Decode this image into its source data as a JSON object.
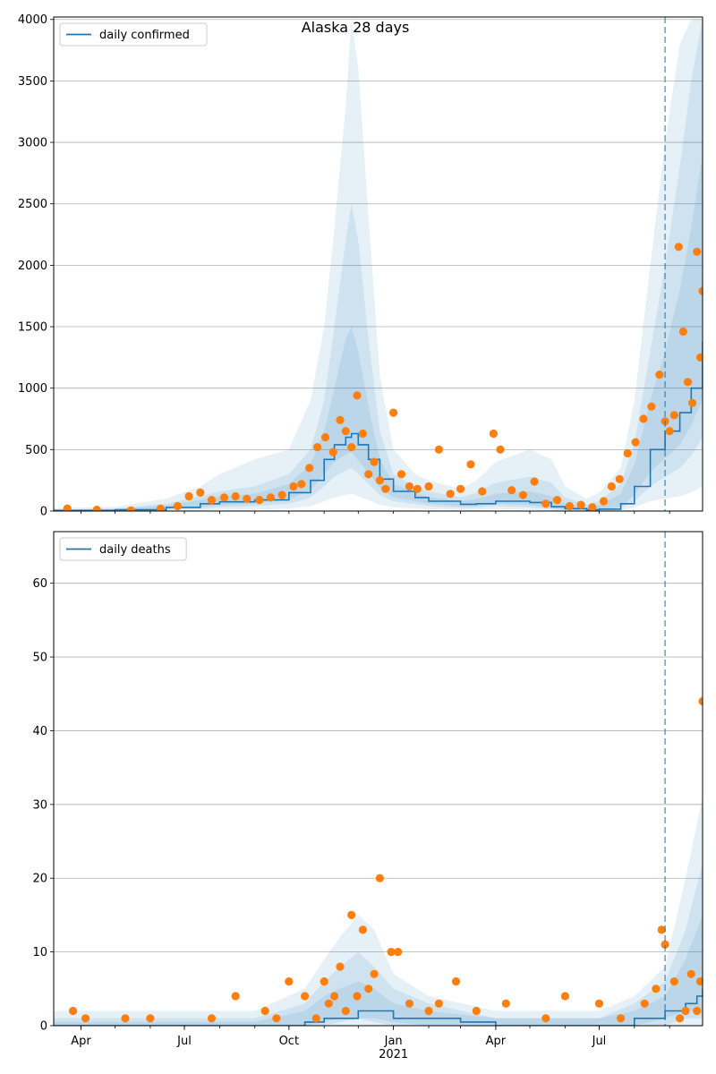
{
  "figure_title": "Alaska 28 days",
  "colors": {
    "line": "#1f77b4",
    "points": "#ff7f0e",
    "band": "#1f77b4",
    "grid": "#b0b0b0"
  },
  "chart_data": [
    {
      "type": "line",
      "title": "Alaska 28 days",
      "legend": [
        "daily confirmed"
      ],
      "legend_position": "top-left",
      "grid": true,
      "ylim": [
        0,
        4020
      ],
      "yticks": [
        0,
        500,
        1000,
        1500,
        2000,
        2500,
        3000,
        3500,
        4000
      ],
      "xlim": [
        "2020-03-08",
        "2021-09-30"
      ],
      "forecast_start": "2021-08-28",
      "series": [
        {
          "name": "daily confirmed",
          "x": [
            "2020-03-08",
            "2020-05-01",
            "2020-06-15",
            "2020-07-15",
            "2020-08-01",
            "2020-09-01",
            "2020-10-01",
            "2020-10-20",
            "2020-11-01",
            "2020-11-10",
            "2020-11-20",
            "2020-11-25",
            "2020-12-01",
            "2020-12-10",
            "2020-12-20",
            "2021-01-01",
            "2021-01-20",
            "2021-02-01",
            "2021-03-01",
            "2021-03-15",
            "2021-04-01",
            "2021-05-01",
            "2021-05-20",
            "2021-06-01",
            "2021-06-20",
            "2021-07-01",
            "2021-07-20",
            "2021-08-01",
            "2021-08-15",
            "2021-08-28",
            "2021-09-10",
            "2021-09-20",
            "2021-09-30"
          ],
          "values": [
            5,
            10,
            30,
            60,
            75,
            90,
            150,
            250,
            420,
            540,
            600,
            630,
            540,
            420,
            260,
            160,
            110,
            80,
            55,
            60,
            80,
            70,
            35,
            20,
            10,
            15,
            60,
            200,
            500,
            650,
            800,
            1000,
            1380
          ]
        },
        {
          "name": "",
          "kind": "observed points",
          "x": [
            "2020-03-20",
            "2020-04-15",
            "2020-05-15",
            "2020-06-10",
            "2020-06-25",
            "2020-07-05",
            "2020-07-15",
            "2020-07-25",
            "2020-08-05",
            "2020-08-15",
            "2020-08-25",
            "2020-09-05",
            "2020-09-15",
            "2020-09-25",
            "2020-10-05",
            "2020-10-12",
            "2020-10-19",
            "2020-10-26",
            "2020-11-02",
            "2020-11-09",
            "2020-11-15",
            "2020-11-20",
            "2020-11-25",
            "2020-11-30",
            "2020-12-05",
            "2020-12-10",
            "2020-12-15",
            "2020-12-20",
            "2020-12-25",
            "2021-01-01",
            "2021-01-08",
            "2021-01-15",
            "2021-01-22",
            "2021-02-01",
            "2021-02-10",
            "2021-02-20",
            "2021-03-01",
            "2021-03-10",
            "2021-03-20",
            "2021-03-30",
            "2021-04-05",
            "2021-04-15",
            "2021-04-25",
            "2021-05-05",
            "2021-05-15",
            "2021-05-25",
            "2021-06-05",
            "2021-06-15",
            "2021-06-25",
            "2021-07-05",
            "2021-07-12",
            "2021-07-19",
            "2021-07-26",
            "2021-08-02",
            "2021-08-09",
            "2021-08-16",
            "2021-08-23",
            "2021-08-28",
            "2021-09-01",
            "2021-09-05",
            "2021-09-09",
            "2021-09-13",
            "2021-09-17",
            "2021-09-21",
            "2021-09-25",
            "2021-09-28",
            "2021-09-30"
          ],
          "values": [
            20,
            10,
            5,
            20,
            40,
            120,
            150,
            90,
            110,
            120,
            100,
            90,
            110,
            130,
            200,
            220,
            350,
            520,
            600,
            480,
            740,
            650,
            520,
            940,
            630,
            300,
            400,
            250,
            180,
            800,
            300,
            200,
            180,
            200,
            500,
            140,
            180,
            380,
            160,
            630,
            500,
            170,
            130,
            240,
            60,
            90,
            40,
            50,
            30,
            80,
            200,
            260,
            470,
            560,
            750,
            850,
            1110,
            730,
            650,
            780,
            2150,
            1460,
            1050,
            880,
            2110,
            1250,
            1790
          ]
        }
      ],
      "bands": [
        {
          "x": [
            "2020-03-08",
            "2020-05-01",
            "2020-06-15",
            "2020-07-15",
            "2020-08-01",
            "2020-09-01",
            "2020-10-01",
            "2020-10-20",
            "2020-11-01",
            "2020-11-10",
            "2020-11-20",
            "2020-11-25",
            "2020-12-01",
            "2020-12-10",
            "2020-12-20",
            "2021-01-01",
            "2021-01-20",
            "2021-02-01",
            "2021-03-01",
            "2021-03-15",
            "2021-04-01",
            "2021-05-01",
            "2021-05-20",
            "2021-06-01",
            "2021-06-20",
            "2021-07-01",
            "2021-07-20",
            "2021-08-01",
            "2021-08-15",
            "2021-08-28",
            "2021-09-10",
            "2021-09-20",
            "2021-09-30"
          ],
          "lower": [
            0,
            0,
            0,
            5,
            10,
            10,
            20,
            40,
            80,
            110,
            130,
            140,
            120,
            90,
            50,
            30,
            20,
            15,
            10,
            10,
            15,
            10,
            5,
            0,
            0,
            0,
            5,
            30,
            80,
            100,
            120,
            150,
            200
          ],
          "upper": [
            25,
            35,
            100,
            200,
            300,
            420,
            500,
            900,
            1500,
            2300,
            3300,
            4000,
            3600,
            2400,
            1100,
            500,
            300,
            250,
            180,
            250,
            400,
            500,
            420,
            200,
            100,
            150,
            350,
            900,
            2000,
            3000,
            3800,
            4000,
            4000
          ]
        },
        {
          "x": [
            "2020-03-08",
            "2020-05-01",
            "2020-06-15",
            "2020-07-15",
            "2020-08-01",
            "2020-09-01",
            "2020-10-01",
            "2020-10-20",
            "2020-11-01",
            "2020-11-10",
            "2020-11-20",
            "2020-11-25",
            "2020-12-01",
            "2020-12-10",
            "2020-12-20",
            "2021-01-01",
            "2021-01-20",
            "2021-02-01",
            "2021-03-01",
            "2021-03-15",
            "2021-04-01",
            "2021-05-01",
            "2021-05-20",
            "2021-06-01",
            "2021-06-20",
            "2021-07-01",
            "2021-07-20",
            "2021-08-01",
            "2021-08-15",
            "2021-08-28",
            "2021-09-10",
            "2021-09-20",
            "2021-09-30"
          ],
          "lower": [
            2,
            4,
            10,
            20,
            30,
            40,
            60,
            110,
            200,
            280,
            330,
            350,
            300,
            220,
            130,
            80,
            55,
            40,
            25,
            28,
            40,
            30,
            15,
            5,
            2,
            4,
            20,
            80,
            200,
            280,
            350,
            450,
            600
          ],
          "upper": [
            12,
            20,
            60,
            120,
            160,
            200,
            300,
            500,
            900,
            1500,
            2200,
            2500,
            2200,
            1400,
            650,
            300,
            200,
            160,
            110,
            150,
            230,
            280,
            230,
            110,
            55,
            80,
            220,
            550,
            1300,
            2000,
            2800,
            3500,
            4000
          ]
        },
        {
          "x": [
            "2020-03-08",
            "2020-05-01",
            "2020-06-15",
            "2020-07-15",
            "2020-08-01",
            "2020-09-01",
            "2020-10-01",
            "2020-10-20",
            "2020-11-01",
            "2020-11-10",
            "2020-11-20",
            "2020-11-25",
            "2020-12-01",
            "2020-12-10",
            "2020-12-20",
            "2021-01-01",
            "2021-01-20",
            "2021-02-01",
            "2021-03-01",
            "2021-03-15",
            "2021-04-01",
            "2021-05-01",
            "2021-05-20",
            "2021-06-01",
            "2021-06-20",
            "2021-07-01",
            "2021-07-20",
            "2021-08-01",
            "2021-08-15",
            "2021-08-28",
            "2021-09-10",
            "2021-09-20",
            "2021-09-30"
          ],
          "lower": [
            3,
            6,
            18,
            35,
            45,
            60,
            95,
            170,
            300,
            400,
            460,
            480,
            410,
            310,
            190,
            115,
            80,
            60,
            40,
            42,
            60,
            50,
            25,
            10,
            5,
            8,
            35,
            130,
            320,
            430,
            540,
            700,
            900
          ],
          "upper": [
            8,
            14,
            45,
            90,
            120,
            140,
            220,
            380,
            650,
            1000,
            1400,
            1500,
            1300,
            850,
            420,
            220,
            150,
            115,
            80,
            100,
            140,
            160,
            120,
            60,
            30,
            45,
            140,
            380,
            900,
            1300,
            1800,
            2300,
            2900
          ]
        }
      ]
    },
    {
      "type": "line",
      "title": "",
      "legend": [
        "daily deaths"
      ],
      "legend_position": "top-left",
      "grid": true,
      "ylim": [
        0,
        67
      ],
      "yticks": [
        0,
        10,
        20,
        30,
        40,
        50,
        60
      ],
      "xlim": [
        "2020-03-08",
        "2021-09-30"
      ],
      "xticks": [
        "Apr",
        "Jul",
        "Oct",
        "Jan",
        "Apr",
        "Jul"
      ],
      "xtick_dates": [
        "2020-04-01",
        "2020-07-01",
        "2020-10-01",
        "2021-01-01",
        "2021-04-01",
        "2021-07-01"
      ],
      "x_secondary_label": "2021",
      "forecast_start": "2021-08-28",
      "series": [
        {
          "name": "daily deaths",
          "x": [
            "2020-03-08",
            "2020-06-01",
            "2020-09-01",
            "2020-10-15",
            "2020-11-01",
            "2020-11-15",
            "2020-12-01",
            "2020-12-15",
            "2021-01-01",
            "2021-02-01",
            "2021-03-01",
            "2021-04-01",
            "2021-06-01",
            "2021-08-01",
            "2021-08-15",
            "2021-08-28",
            "2021-09-15",
            "2021-09-25",
            "2021-09-30"
          ],
          "values": [
            0,
            0,
            0,
            0.5,
            1,
            1,
            2,
            2,
            1,
            1,
            0.5,
            0,
            0,
            1,
            1,
            2,
            3,
            4,
            5
          ]
        },
        {
          "name": "",
          "kind": "observed points",
          "x": [
            "2020-03-25",
            "2020-04-05",
            "2020-05-10",
            "2020-06-01",
            "2020-07-25",
            "2020-08-15",
            "2020-09-10",
            "2020-09-20",
            "2020-10-01",
            "2020-10-15",
            "2020-10-25",
            "2020-11-01",
            "2020-11-05",
            "2020-11-10",
            "2020-11-15",
            "2020-11-20",
            "2020-11-25",
            "2020-11-30",
            "2020-12-05",
            "2020-12-10",
            "2020-12-15",
            "2020-12-20",
            "2020-12-30",
            "2021-01-05",
            "2021-01-15",
            "2021-02-01",
            "2021-02-10",
            "2021-02-25",
            "2021-03-15",
            "2021-04-10",
            "2021-05-15",
            "2021-06-01",
            "2021-07-01",
            "2021-07-20",
            "2021-08-10",
            "2021-08-20",
            "2021-08-25",
            "2021-08-28",
            "2021-09-05",
            "2021-09-10",
            "2021-09-15",
            "2021-09-20",
            "2021-09-25",
            "2021-09-28",
            "2021-09-30"
          ],
          "values": [
            2,
            1,
            1,
            1,
            1,
            4,
            2,
            1,
            6,
            4,
            1,
            6,
            3,
            4,
            8,
            2,
            15,
            4,
            13,
            5,
            7,
            20,
            10,
            10,
            3,
            2,
            3,
            6,
            2,
            3,
            1,
            4,
            3,
            1,
            3,
            5,
            13,
            11,
            6,
            1,
            2,
            7,
            2,
            6,
            44
          ]
        }
      ],
      "bands": [
        {
          "x": [
            "2020-03-08",
            "2020-09-01",
            "2020-10-15",
            "2020-11-01",
            "2020-11-15",
            "2020-12-01",
            "2020-12-15",
            "2021-01-01",
            "2021-02-01",
            "2021-04-01",
            "2021-07-01",
            "2021-08-01",
            "2021-08-28",
            "2021-09-15",
            "2021-09-30"
          ],
          "lower": [
            0,
            0,
            0,
            0,
            0,
            0,
            0,
            0,
            0,
            0,
            0,
            0,
            0,
            0,
            0
          ],
          "upper": [
            2,
            2,
            5,
            9,
            12,
            15,
            13,
            7,
            4,
            2,
            2,
            4,
            8,
            20,
            31
          ]
        },
        {
          "x": [
            "2020-03-08",
            "2020-09-01",
            "2020-10-15",
            "2020-11-01",
            "2020-11-15",
            "2020-12-01",
            "2020-12-15",
            "2021-01-01",
            "2021-02-01",
            "2021-04-01",
            "2021-07-01",
            "2021-08-01",
            "2021-08-28",
            "2021-09-15",
            "2021-09-30"
          ],
          "lower": [
            0,
            0,
            0,
            0,
            0.5,
            1,
            0.5,
            0,
            0,
            0,
            0,
            0,
            0,
            1,
            1
          ],
          "upper": [
            1,
            1,
            3,
            6,
            8,
            10,
            8,
            5,
            3,
            1,
            1,
            3,
            6,
            13,
            22
          ]
        },
        {
          "x": [
            "2020-03-08",
            "2020-09-01",
            "2020-10-15",
            "2020-11-01",
            "2020-11-15",
            "2020-12-01",
            "2020-12-15",
            "2021-01-01",
            "2021-02-01",
            "2021-04-01",
            "2021-07-01",
            "2021-08-01",
            "2021-08-28",
            "2021-09-15",
            "2021-09-30"
          ],
          "lower": [
            0,
            0,
            0,
            0.5,
            1,
            1,
            1,
            0.5,
            0,
            0,
            0,
            0,
            1,
            2,
            2
          ],
          "upper": [
            0.5,
            0.5,
            2,
            4,
            5,
            6,
            5,
            3,
            2,
            1,
            1,
            2,
            4,
            9,
            15
          ]
        }
      ]
    }
  ]
}
